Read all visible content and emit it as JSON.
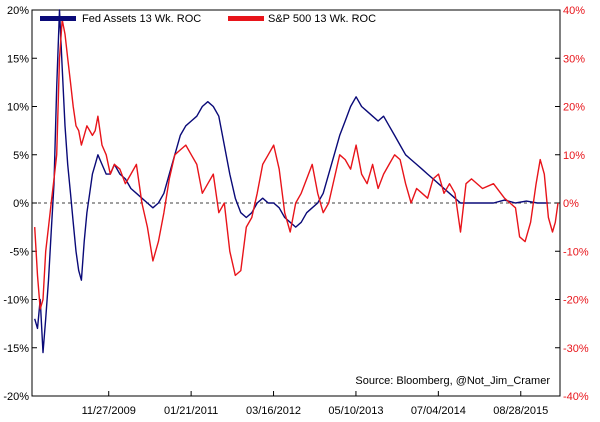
{
  "chart_data": {
    "type": "line",
    "legend_placement": "top-left",
    "source": "Source: Bloomberg, @Not_Jim_Cramer",
    "left_axis": {
      "ylim": [
        -20,
        20
      ],
      "ticks": [
        -20,
        -15,
        -10,
        -5,
        0,
        5,
        10,
        15,
        20
      ],
      "tick_labels": [
        "-20%",
        "-15%",
        "-10%",
        "-5%",
        "0%",
        "5%",
        "10%",
        "15%",
        "20%"
      ]
    },
    "right_axis": {
      "ylim": [
        -40,
        40
      ],
      "ticks": [
        -40,
        -30,
        -20,
        -10,
        0,
        10,
        20,
        30,
        40
      ],
      "tick_labels": [
        "-40%",
        "-30%",
        "-20%",
        "-10%",
        "0%",
        "10%",
        "20%",
        "30%",
        "40%"
      ]
    },
    "x_axis": {
      "range": [
        "2008-11-01",
        "2016-03-15"
      ],
      "tick_dates": [
        "2009-11-27",
        "2011-01-21",
        "2012-03-16",
        "2013-05-10",
        "2014-07-04",
        "2015-08-28"
      ],
      "tick_labels": [
        "11/27/2009",
        "01/21/2011",
        "03/16/2012",
        "05/10/2013",
        "07/04/2014",
        "08/28/2015"
      ]
    },
    "zero_line": true,
    "grid": false,
    "series": [
      {
        "name": "Fed Assets 13 Wk. ROC",
        "axis": "left",
        "color": "#0a0a78",
        "points": [
          [
            "2008-11-15",
            -12
          ],
          [
            "2008-11-29",
            -13
          ],
          [
            "2008-12-13",
            -10
          ],
          [
            "2008-12-27",
            -15.5
          ],
          [
            "2009-01-10",
            -12
          ],
          [
            "2009-01-24",
            -8
          ],
          [
            "2009-02-07",
            -3
          ],
          [
            "2009-02-21",
            2
          ],
          [
            "2009-03-07",
            12
          ],
          [
            "2009-03-21",
            20
          ],
          [
            "2009-04-04",
            14
          ],
          [
            "2009-04-18",
            8
          ],
          [
            "2009-05-02",
            4
          ],
          [
            "2009-05-16",
            1
          ],
          [
            "2009-05-30",
            -2
          ],
          [
            "2009-06-13",
            -5
          ],
          [
            "2009-06-27",
            -7
          ],
          [
            "2009-07-11",
            -8
          ],
          [
            "2009-07-25",
            -4
          ],
          [
            "2009-08-08",
            -1
          ],
          [
            "2009-08-22",
            1
          ],
          [
            "2009-09-05",
            3
          ],
          [
            "2009-09-19",
            4
          ],
          [
            "2009-10-03",
            5
          ],
          [
            "2009-10-24",
            4
          ],
          [
            "2009-11-14",
            3
          ],
          [
            "2009-12-05",
            3
          ],
          [
            "2009-12-26",
            4
          ],
          [
            "2010-01-23",
            3
          ],
          [
            "2010-02-20",
            2.5
          ],
          [
            "2010-03-20",
            1.5
          ],
          [
            "2010-04-17",
            1
          ],
          [
            "2010-05-15",
            0.5
          ],
          [
            "2010-06-12",
            0
          ],
          [
            "2010-07-10",
            -0.5
          ],
          [
            "2010-08-07",
            0
          ],
          [
            "2010-09-04",
            1
          ],
          [
            "2010-10-02",
            3
          ],
          [
            "2010-10-30",
            5
          ],
          [
            "2010-11-27",
            7
          ],
          [
            "2010-12-25",
            8
          ],
          [
            "2011-01-22",
            8.5
          ],
          [
            "2011-02-19",
            9
          ],
          [
            "2011-03-19",
            10
          ],
          [
            "2011-04-16",
            10.5
          ],
          [
            "2011-05-14",
            10
          ],
          [
            "2011-06-11",
            9
          ],
          [
            "2011-07-09",
            6
          ],
          [
            "2011-08-06",
            3
          ],
          [
            "2011-09-03",
            0.5
          ],
          [
            "2011-10-01",
            -1
          ],
          [
            "2011-10-29",
            -1.5
          ],
          [
            "2011-11-26",
            -1
          ],
          [
            "2011-12-24",
            0
          ],
          [
            "2012-01-21",
            0.5
          ],
          [
            "2012-02-18",
            0
          ],
          [
            "2012-03-17",
            0
          ],
          [
            "2012-04-14",
            -0.5
          ],
          [
            "2012-05-12",
            -1.5
          ],
          [
            "2012-06-09",
            -2
          ],
          [
            "2012-07-07",
            -2.5
          ],
          [
            "2012-08-04",
            -2
          ],
          [
            "2012-09-01",
            -1
          ],
          [
            "2012-09-29",
            -0.5
          ],
          [
            "2012-10-27",
            0
          ],
          [
            "2012-11-24",
            1
          ],
          [
            "2012-12-22",
            3
          ],
          [
            "2013-01-19",
            5
          ],
          [
            "2013-02-16",
            7
          ],
          [
            "2013-03-16",
            8.5
          ],
          [
            "2013-04-13",
            10
          ],
          [
            "2013-05-11",
            11
          ],
          [
            "2013-06-08",
            10
          ],
          [
            "2013-07-06",
            9.5
          ],
          [
            "2013-08-03",
            9
          ],
          [
            "2013-08-31",
            8.5
          ],
          [
            "2013-09-28",
            9
          ],
          [
            "2013-10-26",
            8
          ],
          [
            "2013-11-23",
            7
          ],
          [
            "2013-12-21",
            6
          ],
          [
            "2014-01-18",
            5
          ],
          [
            "2014-02-15",
            4.5
          ],
          [
            "2014-03-15",
            4
          ],
          [
            "2014-04-12",
            3.5
          ],
          [
            "2014-05-10",
            3
          ],
          [
            "2014-06-07",
            2.5
          ],
          [
            "2014-07-05",
            2
          ],
          [
            "2014-08-02",
            1.5
          ],
          [
            "2014-08-30",
            1
          ],
          [
            "2014-09-27",
            0.5
          ],
          [
            "2014-10-25",
            0
          ],
          [
            "2014-11-22",
            0
          ],
          [
            "2014-12-20",
            0
          ],
          [
            "2015-02-14",
            0
          ],
          [
            "2015-04-11",
            0
          ],
          [
            "2015-06-06",
            0.3
          ],
          [
            "2015-08-01",
            0
          ],
          [
            "2015-09-26",
            0.2
          ],
          [
            "2015-11-21",
            0
          ],
          [
            "2016-01-16",
            0
          ]
        ]
      },
      {
        "name": "S&P 500 13 Wk. ROC",
        "axis": "right",
        "color": "#e8141a",
        "points": [
          [
            "2008-11-15",
            -5
          ],
          [
            "2008-11-29",
            -15
          ],
          [
            "2008-12-13",
            -22
          ],
          [
            "2008-12-27",
            -20
          ],
          [
            "2009-01-10",
            -10
          ],
          [
            "2009-01-24",
            -5
          ],
          [
            "2009-02-07",
            0
          ],
          [
            "2009-02-21",
            5
          ],
          [
            "2009-03-07",
            10
          ],
          [
            "2009-03-21",
            30
          ],
          [
            "2009-04-04",
            38
          ],
          [
            "2009-04-18",
            35
          ],
          [
            "2009-05-02",
            30
          ],
          [
            "2009-05-16",
            25
          ],
          [
            "2009-05-30",
            20
          ],
          [
            "2009-06-13",
            16
          ],
          [
            "2009-06-27",
            15
          ],
          [
            "2009-07-11",
            12
          ],
          [
            "2009-07-25",
            14
          ],
          [
            "2009-08-08",
            16
          ],
          [
            "2009-08-22",
            15
          ],
          [
            "2009-09-05",
            14
          ],
          [
            "2009-09-19",
            15
          ],
          [
            "2009-10-03",
            18
          ],
          [
            "2009-10-24",
            12
          ],
          [
            "2009-11-14",
            10
          ],
          [
            "2009-12-05",
            6
          ],
          [
            "2009-12-26",
            8
          ],
          [
            "2010-01-23",
            7
          ],
          [
            "2010-02-20",
            4
          ],
          [
            "2010-03-20",
            6
          ],
          [
            "2010-04-17",
            8
          ],
          [
            "2010-05-15",
            0
          ],
          [
            "2010-06-12",
            -5
          ],
          [
            "2010-07-10",
            -12
          ],
          [
            "2010-08-07",
            -8
          ],
          [
            "2010-09-04",
            -2
          ],
          [
            "2010-10-02",
            5
          ],
          [
            "2010-10-30",
            10
          ],
          [
            "2010-11-27",
            11
          ],
          [
            "2010-12-25",
            12
          ],
          [
            "2011-01-22",
            10
          ],
          [
            "2011-02-19",
            8
          ],
          [
            "2011-03-19",
            2
          ],
          [
            "2011-04-16",
            4
          ],
          [
            "2011-05-14",
            6
          ],
          [
            "2011-06-11",
            -2
          ],
          [
            "2011-07-09",
            0
          ],
          [
            "2011-08-06",
            -10
          ],
          [
            "2011-09-03",
            -15
          ],
          [
            "2011-10-01",
            -14
          ],
          [
            "2011-10-29",
            -5
          ],
          [
            "2011-11-26",
            -3
          ],
          [
            "2011-12-24",
            2
          ],
          [
            "2012-01-21",
            8
          ],
          [
            "2012-02-18",
            10
          ],
          [
            "2012-03-17",
            12
          ],
          [
            "2012-04-14",
            7
          ],
          [
            "2012-05-12",
            -2
          ],
          [
            "2012-06-09",
            -6
          ],
          [
            "2012-07-07",
            0
          ],
          [
            "2012-08-04",
            2
          ],
          [
            "2012-09-01",
            5
          ],
          [
            "2012-09-29",
            8
          ],
          [
            "2012-10-27",
            2
          ],
          [
            "2012-11-24",
            -2
          ],
          [
            "2012-12-22",
            0
          ],
          [
            "2013-01-19",
            5
          ],
          [
            "2013-02-16",
            10
          ],
          [
            "2013-03-16",
            9
          ],
          [
            "2013-04-13",
            7
          ],
          [
            "2013-05-11",
            12
          ],
          [
            "2013-06-08",
            6
          ],
          [
            "2013-07-06",
            4
          ],
          [
            "2013-08-03",
            8
          ],
          [
            "2013-08-31",
            3
          ],
          [
            "2013-09-28",
            6
          ],
          [
            "2013-10-26",
            8
          ],
          [
            "2013-11-23",
            10
          ],
          [
            "2013-12-21",
            9
          ],
          [
            "2014-01-18",
            4
          ],
          [
            "2014-02-15",
            0
          ],
          [
            "2014-03-15",
            3
          ],
          [
            "2014-04-12",
            2
          ],
          [
            "2014-05-10",
            1
          ],
          [
            "2014-06-07",
            5
          ],
          [
            "2014-07-05",
            6
          ],
          [
            "2014-08-02",
            2
          ],
          [
            "2014-08-30",
            4
          ],
          [
            "2014-09-27",
            2
          ],
          [
            "2014-10-25",
            -6
          ],
          [
            "2014-11-22",
            4
          ],
          [
            "2014-12-20",
            5
          ],
          [
            "2015-02-14",
            3
          ],
          [
            "2015-04-11",
            4
          ],
          [
            "2015-06-06",
            1
          ],
          [
            "2015-08-01",
            -1
          ],
          [
            "2015-08-22",
            -7
          ],
          [
            "2015-09-19",
            -8
          ],
          [
            "2015-10-17",
            -4
          ],
          [
            "2015-11-14",
            4
          ],
          [
            "2015-12-05",
            9
          ],
          [
            "2015-12-26",
            6
          ],
          [
            "2016-01-16",
            -3
          ],
          [
            "2016-02-06",
            -6
          ],
          [
            "2016-02-20",
            -4
          ],
          [
            "2016-03-05",
            0
          ]
        ]
      }
    ]
  }
}
